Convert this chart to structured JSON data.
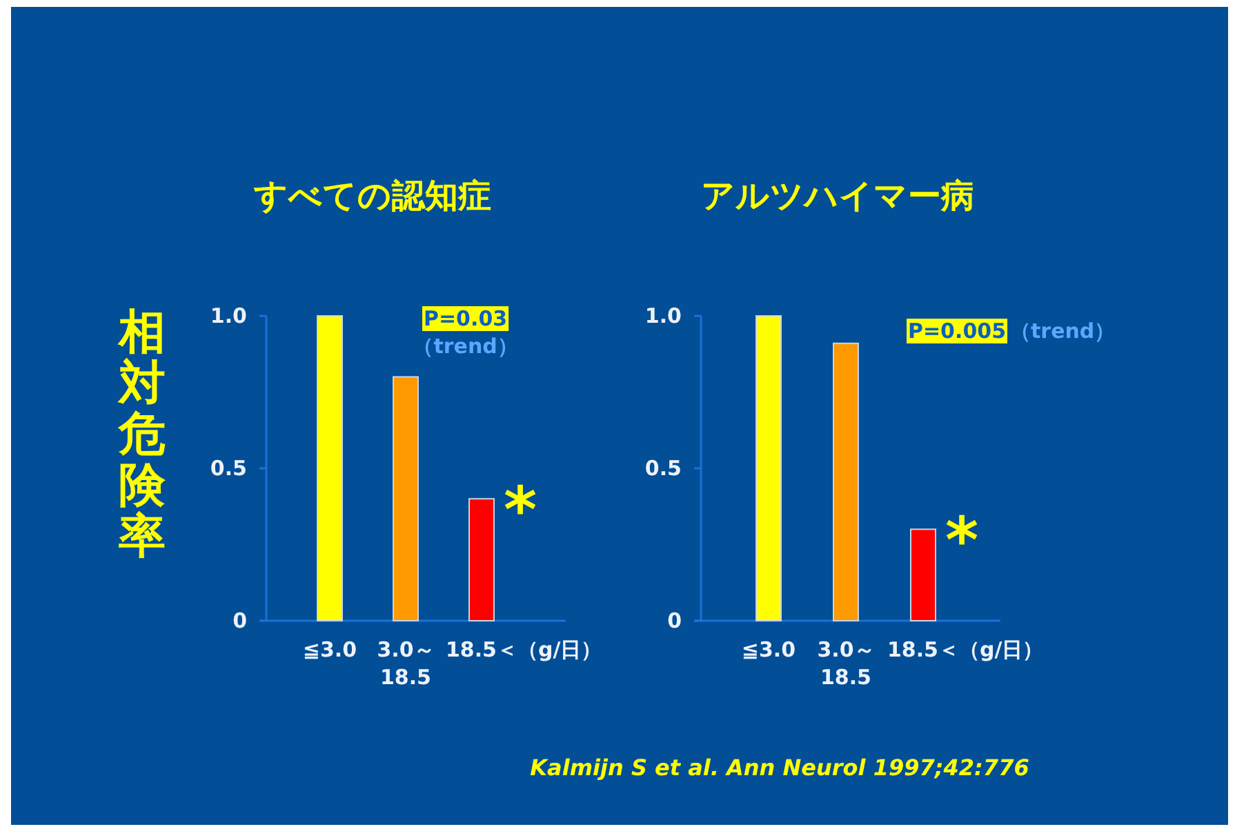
{
  "chart_data": [
    {
      "type": "bar",
      "title": "すべての認知症",
      "ylabel": "相対危険率",
      "categories": [
        "≦3.0",
        "3.0～18.5",
        "18.5＜"
      ],
      "xlabel": "（g/日）",
      "values": [
        1.0,
        0.8,
        0.4
      ],
      "colors": [
        "#ffff00",
        "#ff9900",
        "#ff0000"
      ],
      "ylim": [
        0,
        1
      ],
      "yticks": [
        {
          "value": 0,
          "label": "0"
        },
        {
          "value": 0.5,
          "label": "0.5"
        },
        {
          "value": 1,
          "label": "1.0"
        }
      ],
      "annotations": [
        "P=0.03",
        "（trend）",
        {
          "text": "*",
          "x": "18.5＜",
          "y": 0.4
        }
      ]
    },
    {
      "type": "bar",
      "title": "アルツハイマー病",
      "categories": [
        "≦3.0",
        "3.0～18.5",
        "18.5＜"
      ],
      "xlabel": "（g/日）",
      "values": [
        1.0,
        0.91,
        0.3
      ],
      "colors": [
        "#ffff00",
        "#ff9900",
        "#ff0000"
      ],
      "ylim": [
        0,
        1
      ],
      "yticks": [
        {
          "value": 0,
          "label": "0"
        },
        {
          "value": 0.5,
          "label": "0.5"
        },
        {
          "value": 1,
          "label": "1.0"
        }
      ],
      "annotations": [
        "P=0.005",
        "（trend）",
        {
          "text": "*",
          "x": "18.5＜",
          "y": 0.3
        },
        "*Kalmijn S et al. Ann Neurol 1997;42:776*"
      ]
    }
  ]
}
